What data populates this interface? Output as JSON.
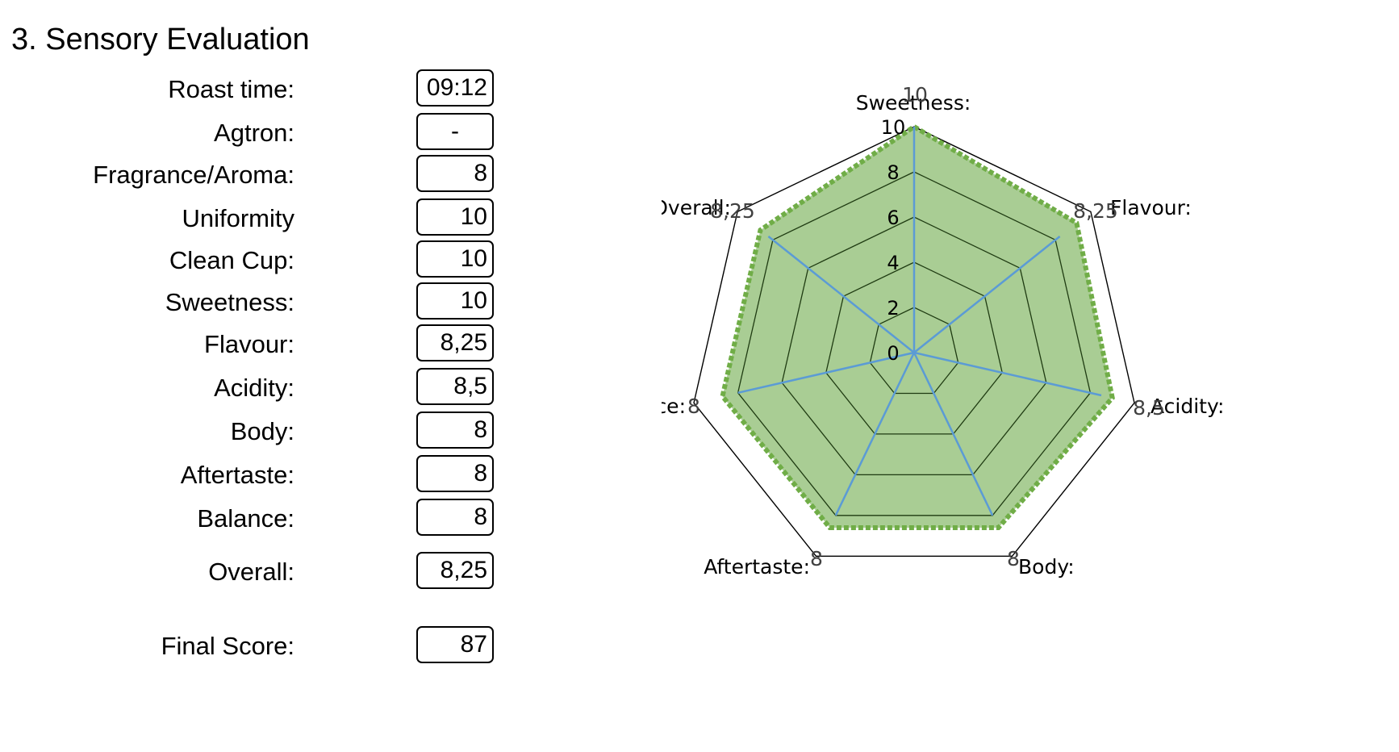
{
  "page": {
    "title": "3. Sensory Evaluation"
  },
  "rows": [
    {
      "label": "Roast time:",
      "value": "09:12"
    },
    {
      "label": "Agtron:",
      "value": "-"
    },
    {
      "label": "Fragrance/Aroma:",
      "value": "8"
    },
    {
      "label": "Uniformity",
      "value": "10"
    },
    {
      "label": "Clean Cup:",
      "value": "10"
    },
    {
      "label": "Sweetness:",
      "value": "10"
    },
    {
      "label": "Flavour:",
      "value": "8,25"
    },
    {
      "label": "Acidity:",
      "value": "8,5"
    },
    {
      "label": "Body:",
      "value": "8"
    },
    {
      "label": "Aftertaste:",
      "value": "8"
    },
    {
      "label": "Balance:",
      "value": "8"
    },
    {
      "label": "Overall:",
      "value": "8,25"
    },
    {
      "label": "Final Score:",
      "value": "87"
    }
  ],
  "chart_data": {
    "type": "radar",
    "title": "",
    "categories": [
      "Sweetness:",
      "Flavour:",
      "Acidity:",
      "Body:",
      "Aftertaste:",
      "Balance:",
      "Overall:"
    ],
    "value_labels": [
      "10",
      "8,25",
      "8,5",
      "8",
      "8",
      "8",
      "8,25"
    ],
    "series": [
      {
        "values": [
          10,
          8.25,
          8.5,
          8,
          8,
          8,
          8.25
        ],
        "color": "#5b9bd5",
        "style": "line"
      },
      {
        "values": [
          10,
          9.2,
          9.0,
          8.6,
          8.6,
          8.7,
          8.7
        ],
        "color": "#70ad47",
        "fill": "#a9cd94",
        "style": "dotted-filled"
      }
    ],
    "range": [
      0,
      10
    ],
    "tick_labels": [
      "0",
      "2",
      "4",
      "6",
      "8",
      "10"
    ],
    "grid": true
  }
}
